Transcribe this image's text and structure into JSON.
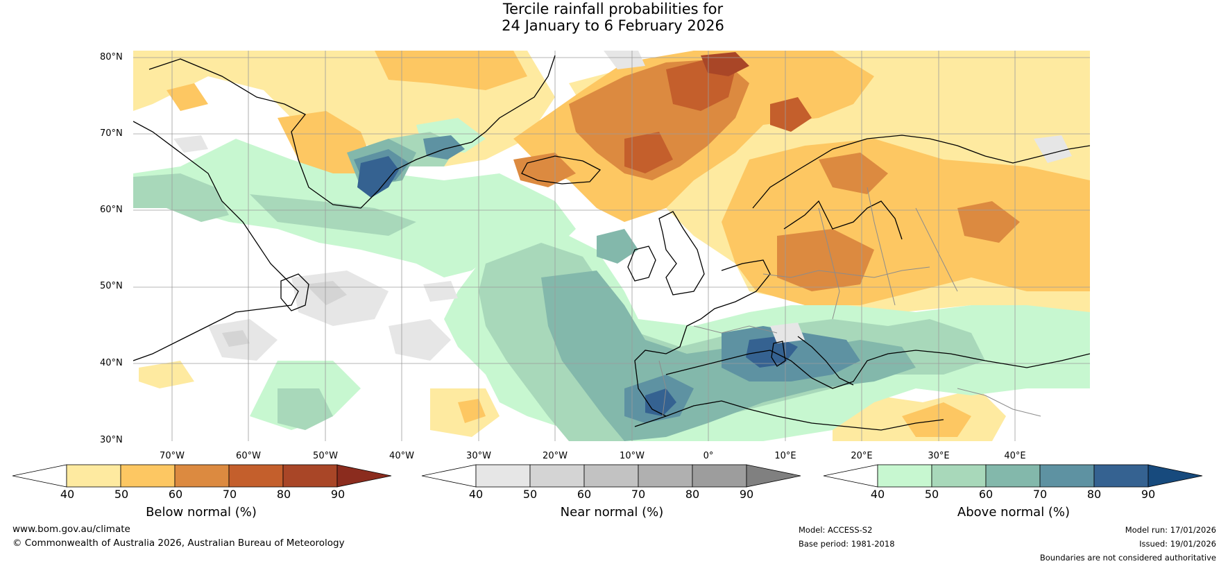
{
  "title": {
    "line1": "Tercile rainfall probabilities for",
    "line2": "24 January to 6 February 2026"
  },
  "map": {
    "lat_labels": [
      "80°N",
      "70°N",
      "60°N",
      "50°N",
      "40°N",
      "30°N"
    ],
    "lon_labels": [
      "70°W",
      "60°W",
      "50°W",
      "40°W",
      "30°W",
      "20°W",
      "10°W",
      "0°",
      "10°E",
      "20°E",
      "30°E",
      "40°E"
    ]
  },
  "colorbars": {
    "below": {
      "title": "Below normal (%)",
      "ticks": [
        "40",
        "50",
        "60",
        "70",
        "80",
        "90"
      ],
      "colors": [
        "#ffffff",
        "#feeaa0",
        "#fdc762",
        "#dc8a40",
        "#c45f2c",
        "#a94627",
        "#8b2c1e"
      ]
    },
    "near": {
      "title": "Near normal (%)",
      "ticks": [
        "40",
        "50",
        "60",
        "70",
        "80",
        "90"
      ],
      "colors": [
        "#ffffff",
        "#e6e6e6",
        "#d4d4d4",
        "#c2c2c2",
        "#b0b0b0",
        "#9d9d9d",
        "#808080"
      ]
    },
    "above": {
      "title": "Above normal (%)",
      "ticks": [
        "40",
        "50",
        "60",
        "70",
        "80",
        "90"
      ],
      "colors": [
        "#ffffff",
        "#c7f7d0",
        "#a8d8ba",
        "#83b8ab",
        "#5e92a2",
        "#356291",
        "#174a7d"
      ]
    }
  },
  "footer": {
    "website": "www.bom.gov.au/climate",
    "copyright": "© Commonwealth of Australia 2026, Australian Bureau of Meteorology",
    "model": "Model: ACCESS-S2",
    "base_period": "Base period: 1981-2018",
    "model_run": "Model run: 17/01/2026",
    "issued": "Issued: 19/01/2026",
    "disclaimer": "Boundaries are not considered authoritative"
  }
}
